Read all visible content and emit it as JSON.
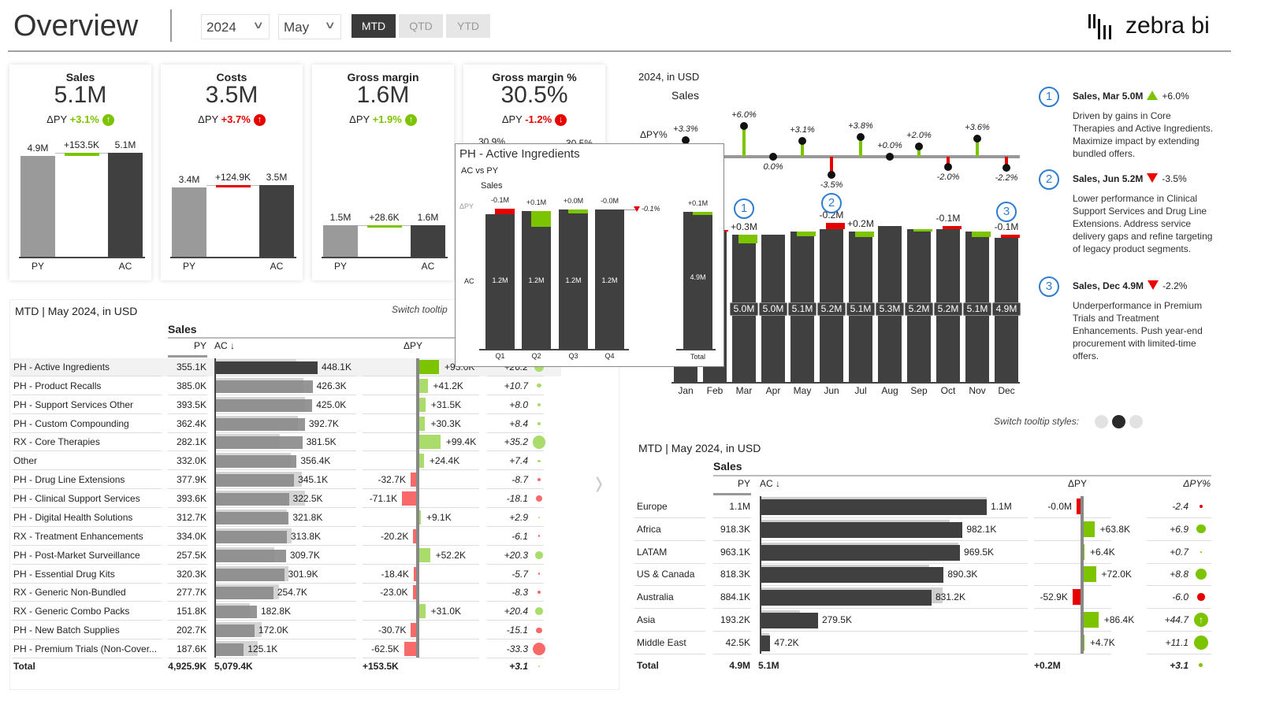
{
  "header": {
    "title": "Overview",
    "year": "2024",
    "month": "May",
    "periods": [
      "MTD",
      "QTD",
      "YTD"
    ],
    "active_period": "MTD",
    "logo": "zebra bi"
  },
  "colors": {
    "good": "#7dc400",
    "bad": "#e60000",
    "good_light": "#a9dc6a",
    "bad_light": "#f86a6a",
    "ac": "#404040",
    "py": "#9a9a9a",
    "marker": "#2f7dd1"
  },
  "kpis": [
    {
      "title": "Sales",
      "value": "5.1M",
      "dpy_label": "ΔPY",
      "dpy": "+3.1%",
      "status": "good",
      "arrow": "up",
      "py": 4.926,
      "ac": 5.079,
      "py_label": "4.9M",
      "delta_label": "+153.5K",
      "ac_label": "5.1M",
      "cat_py": "PY",
      "cat_ac": "AC",
      "unit": "M"
    },
    {
      "title": "Costs",
      "value": "3.5M",
      "dpy_label": "ΔPY",
      "dpy": "+3.7%",
      "status": "bad",
      "arrow": "up",
      "py": 3.375,
      "ac": 3.5,
      "py_label": "3.4M",
      "delta_label": "+124.9K",
      "ac_label": "3.5M",
      "cat_py": "PY",
      "cat_ac": "AC",
      "unit": "M"
    },
    {
      "title": "Gross margin",
      "value": "1.6M",
      "dpy_label": "ΔPY",
      "dpy": "+1.9%",
      "status": "good",
      "arrow": "up",
      "py": 1.52,
      "ac": 1.549,
      "py_label": "1.5M",
      "delta_label": "+28.6K",
      "ac_label": "1.6M",
      "cat_py": "PY",
      "cat_ac": "AC",
      "unit": "M"
    },
    {
      "title": "Gross margin %",
      "value": "30.5%",
      "dpy_label": "ΔPY",
      "dpy": "-1.2%",
      "status": "bad",
      "arrow": "down",
      "py": 30.9,
      "ac": 30.5,
      "py_label": "30.9%",
      "delta_label": "",
      "ac_label": "30.5%",
      "cat_py": "PY",
      "cat_ac": "AC",
      "unit": "%"
    }
  ],
  "monthly": {
    "title": "2024, in USD",
    "measure": "Sales",
    "dpy_pct_label": "ΔPY%",
    "months": [
      {
        "m": "Jan",
        "ac": 4.9,
        "ac_label": "",
        "dpy_pct": 3.3,
        "dpy_pct_label": "+3.3%",
        "delta_label": ""
      },
      {
        "m": "Feb",
        "ac": 5.1,
        "ac_label": "",
        "dpy_pct": -1.0,
        "dpy_pct_label": "",
        "delta_label": ""
      },
      {
        "m": "Mar",
        "ac": 5.0,
        "ac_label": "5.0M",
        "dpy_pct": 6.0,
        "dpy_pct_label": "+6.0%",
        "delta_label": "+0.3M"
      },
      {
        "m": "Apr",
        "ac": 5.0,
        "ac_label": "5.0M",
        "dpy_pct": 0.0,
        "dpy_pct_label": "0.0%",
        "delta_label": ""
      },
      {
        "m": "May",
        "ac": 5.1,
        "ac_label": "5.1M",
        "dpy_pct": 3.1,
        "dpy_pct_label": "+3.1%",
        "delta_label": ""
      },
      {
        "m": "Jun",
        "ac": 5.2,
        "ac_label": "5.2M",
        "dpy_pct": -3.5,
        "dpy_pct_label": "-3.5%",
        "delta_label": "-0.2M"
      },
      {
        "m": "Jul",
        "ac": 5.1,
        "ac_label": "5.1M",
        "dpy_pct": 3.8,
        "dpy_pct_label": "+3.8%",
        "delta_label": "+0.2M"
      },
      {
        "m": "Aug",
        "ac": 5.3,
        "ac_label": "5.3M",
        "dpy_pct": 0.0,
        "dpy_pct_label": "+0.0%",
        "delta_label": ""
      },
      {
        "m": "Sep",
        "ac": 5.2,
        "ac_label": "5.2M",
        "dpy_pct": 2.0,
        "dpy_pct_label": "+2.0%",
        "delta_label": ""
      },
      {
        "m": "Oct",
        "ac": 5.2,
        "ac_label": "5.2M",
        "dpy_pct": -2.0,
        "dpy_pct_label": "-2.0%",
        "delta_label": "-0.1M"
      },
      {
        "m": "Nov",
        "ac": 5.1,
        "ac_label": "5.1M",
        "dpy_pct": 3.6,
        "dpy_pct_label": "+3.6%",
        "delta_label": ""
      },
      {
        "m": "Dec",
        "ac": 4.9,
        "ac_label": "4.9M",
        "dpy_pct": -2.2,
        "dpy_pct_label": "-2.2%",
        "delta_label": "-0.1M"
      }
    ],
    "markers": [
      {
        "num": "1",
        "month": "Mar"
      },
      {
        "num": "2",
        "month": "Jun"
      },
      {
        "num": "3",
        "month": "Dec"
      }
    ]
  },
  "annotations": [
    {
      "num": "1",
      "title": "Sales, Mar 5.0M",
      "direction": "up",
      "pct": "+6.0%",
      "text": "Driven by gains in Core Therapies and Active Ingredients. Maximize impact by extending bundled offers."
    },
    {
      "num": "2",
      "title": "Sales, Jun 5.2M",
      "direction": "down",
      "pct": "-3.5%",
      "text": "Lower performance in Clinical Support Services and Drug Line Extensions. Address service delivery gaps and refine targeting of legacy product segments."
    },
    {
      "num": "3",
      "title": "Sales, Dec 4.9M",
      "direction": "down",
      "pct": "-2.2%",
      "text": "Underperformance in Premium Trials and Treatment Enhancements. Push year-end procurement with limited-time offers."
    }
  ],
  "tooltip": {
    "title": "PH - Active Ingredients",
    "subtitle": "AC vs PY",
    "measure": "Sales",
    "row_dpy": "ΔPY",
    "row_ac": "AC",
    "quarters": [
      {
        "q": "Q1",
        "ac": 1.17,
        "delta": -0.05,
        "ac_label": "1.2M",
        "delta_label": "-0.1M"
      },
      {
        "q": "Q2",
        "ac": 1.2,
        "delta": 0.14,
        "ac_label": "1.2M",
        "delta_label": "+0.1M"
      },
      {
        "q": "Q3",
        "ac": 1.21,
        "delta": 0.03,
        "ac_label": "1.2M",
        "delta_label": "+0.0M"
      },
      {
        "q": "Q4",
        "ac": 1.21,
        "delta": 0.0,
        "ac_label": "1.2M",
        "delta_label": "-0.0M"
      }
    ],
    "trend_label": "-0.1%",
    "total": {
      "label": "Total",
      "ac": 4.9,
      "delta": 0.1,
      "ac_label": "4.9M",
      "delta_label": "+0.1M"
    }
  },
  "products_table": {
    "title": "MTD | May 2024, in USD",
    "switch_label": "Switch tooltip",
    "measure": "Sales",
    "headers": {
      "py": "PY",
      "ac": "AC ↓",
      "dpy": "ΔPY"
    },
    "rows": [
      {
        "name": "PH - Active Ingredients",
        "py": "355.1K",
        "ac": "448.1K",
        "dpy": "+93.0K",
        "dpy_pct": "+26.2",
        "selected": true
      },
      {
        "name": "PH - Product Recalls",
        "py": "385.0K",
        "ac": "426.3K",
        "dpy": "+41.2K",
        "dpy_pct": "+10.7"
      },
      {
        "name": "PH - Support Services Other",
        "py": "393.5K",
        "ac": "425.0K",
        "dpy": "+31.5K",
        "dpy_pct": "+8.0"
      },
      {
        "name": "PH - Custom Compounding",
        "py": "362.4K",
        "ac": "392.7K",
        "dpy": "+30.3K",
        "dpy_pct": "+8.4"
      },
      {
        "name": "RX - Core Therapies",
        "py": "282.1K",
        "ac": "381.5K",
        "dpy": "+99.4K",
        "dpy_pct": "+35.2"
      },
      {
        "name": "Other",
        "py": "332.0K",
        "ac": "356.4K",
        "dpy": "+24.4K",
        "dpy_pct": "+7.4"
      },
      {
        "name": "PH - Drug Line Extensions",
        "py": "377.9K",
        "ac": "345.1K",
        "dpy": "-32.7K",
        "dpy_pct": "-8.7"
      },
      {
        "name": "PH - Clinical Support Services",
        "py": "393.6K",
        "ac": "322.5K",
        "dpy": "-71.1K",
        "dpy_pct": "-18.1"
      },
      {
        "name": "PH - Digital Health Solutions",
        "py": "312.7K",
        "ac": "321.8K",
        "dpy": "+9.1K",
        "dpy_pct": "+2.9"
      },
      {
        "name": "RX - Treatment Enhancements",
        "py": "334.0K",
        "ac": "313.8K",
        "dpy": "-20.2K",
        "dpy_pct": "-6.1"
      },
      {
        "name": "PH - Post-Market Surveillance",
        "py": "257.5K",
        "ac": "309.7K",
        "dpy": "+52.2K",
        "dpy_pct": "+20.3"
      },
      {
        "name": "PH - Essential Drug Kits",
        "py": "320.3K",
        "ac": "301.9K",
        "dpy": "-18.4K",
        "dpy_pct": "-5.7"
      },
      {
        "name": "RX - Generic Non-Bundled",
        "py": "277.7K",
        "ac": "254.7K",
        "dpy": "-23.0K",
        "dpy_pct": "-8.3"
      },
      {
        "name": "RX - Generic Combo Packs",
        "py": "151.8K",
        "ac": "182.8K",
        "dpy": "+31.0K",
        "dpy_pct": "+20.4"
      },
      {
        "name": "PH - New Batch Supplies",
        "py": "202.7K",
        "ac": "172.0K",
        "dpy": "-30.7K",
        "dpy_pct": "-15.1"
      },
      {
        "name": "PH - Premium Trials (Non-Cover...",
        "py": "187.6K",
        "ac": "125.1K",
        "dpy": "-62.5K",
        "dpy_pct": "-33.3"
      }
    ],
    "total": {
      "name": "Total",
      "py": "4,925.9K",
      "ac": "5,079.4K",
      "dpy": "+153.5K",
      "dpy_pct": "+3.1"
    }
  },
  "tooltip_styles": {
    "label": "Switch tooltip styles:",
    "options": 3,
    "active": 2
  },
  "regions_table": {
    "title": "MTD | May 2024, in USD",
    "measure": "Sales",
    "headers": {
      "py": "PY",
      "ac": "AC ↓",
      "dpy": "ΔPY",
      "dpy_pct": "ΔPY%"
    },
    "rows": [
      {
        "name": "Europe",
        "py": "1.1M",
        "ac": "1.1M",
        "dpy": "-0.0M",
        "dpy_pct": "-2.4"
      },
      {
        "name": "Africa",
        "py": "918.3K",
        "ac": "982.1K",
        "dpy": "+63.8K",
        "dpy_pct": "+6.9"
      },
      {
        "name": "LATAM",
        "py": "963.1K",
        "ac": "969.5K",
        "dpy": "+6.4K",
        "dpy_pct": "+0.7"
      },
      {
        "name": "US & Canada",
        "py": "818.3K",
        "ac": "890.3K",
        "dpy": "+72.0K",
        "dpy_pct": "+8.8"
      },
      {
        "name": "Australia",
        "py": "884.1K",
        "ac": "831.2K",
        "dpy": "-52.9K",
        "dpy_pct": "-6.0"
      },
      {
        "name": "Asia",
        "py": "193.2K",
        "ac": "279.5K",
        "dpy": "+86.4K",
        "dpy_pct": "+44.7"
      },
      {
        "name": "Middle East",
        "py": "42.5K",
        "ac": "47.2K",
        "dpy": "+4.7K",
        "dpy_pct": "+11.1"
      }
    ],
    "total": {
      "name": "Total",
      "py": "4.9M",
      "ac": "5.1M",
      "dpy": "+0.2M",
      "dpy_pct": "+3.1"
    }
  }
}
